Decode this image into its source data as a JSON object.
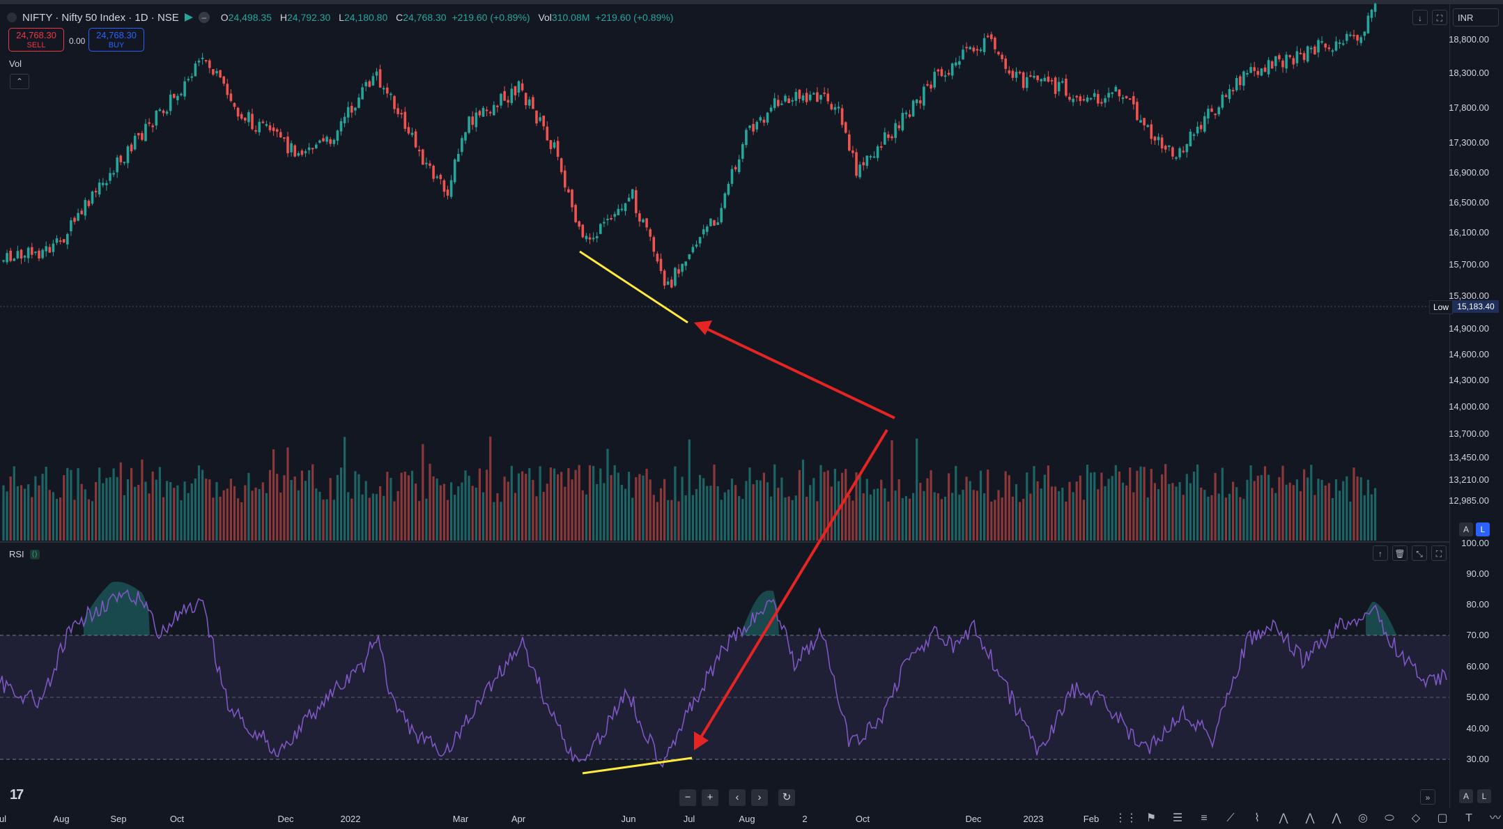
{
  "header": {
    "symbol": "NIFTY · Nifty 50 Index · 1D · NSE",
    "open_key": "O",
    "open": "24,498.35",
    "high_key": "H",
    "high": "24,792.30",
    "low_key": "L",
    "low": "24,180.80",
    "close_key": "C",
    "close": "24,768.30",
    "change": "+219.60 (+0.89%)",
    "vol_key": "Vol",
    "vol": "310.08M",
    "vol_change": "+219.60 (+0.89%)"
  },
  "trade": {
    "sell_price": "24,768.30",
    "sell_label": "SELL",
    "spread": "0.00",
    "buy_price": "24,768.30",
    "buy_label": "BUY"
  },
  "panels": {
    "vol_label": "Vol",
    "rsi_label": "RSI"
  },
  "price_axis": {
    "currency": "INR",
    "ticks": [
      "18,800.00",
      "18,300.00",
      "17,800.00",
      "17,300.00",
      "16,900.00",
      "16,500.00",
      "16,100.00",
      "15,700.00",
      "15,300.00",
      "14,900.00",
      "14,600.00",
      "14,300.00",
      "14,000.00",
      "13,700.00",
      "13,450.00",
      "13,210.00",
      "12,985.00"
    ],
    "low_label": "Low",
    "low_value": "15,183.40"
  },
  "rsi_axis": {
    "ticks": [
      "100.00",
      "90.00",
      "80.00",
      "70.00",
      "60.00",
      "50.00",
      "40.00",
      "30.00"
    ]
  },
  "time_axis": {
    "ticks": [
      "ul",
      "Aug",
      "Sep",
      "Oct",
      "Dec",
      "2022",
      "Mar",
      "Apr",
      "Jun",
      "Jul",
      "Aug",
      "2",
      "Oct",
      "Dec",
      "2023",
      "Feb"
    ]
  },
  "colors": {
    "bg": "#131722",
    "up": "#26a69a",
    "down": "#ef5350",
    "rsi": "#7e57c2",
    "divergence": "#ffeb3b",
    "arrow": "#e52424"
  },
  "icons": {
    "nav_zoom_out": "−",
    "nav_zoom_in": "+",
    "nav_left": "‹",
    "nav_right": "›",
    "nav_reset": "↻"
  }
}
